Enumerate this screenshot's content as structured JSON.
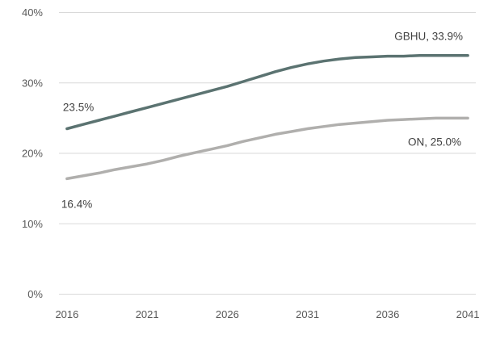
{
  "chart_data": {
    "type": "line",
    "title": "",
    "x": [
      2016,
      2017,
      2018,
      2019,
      2020,
      2021,
      2022,
      2023,
      2024,
      2025,
      2026,
      2027,
      2028,
      2029,
      2030,
      2031,
      2032,
      2033,
      2034,
      2035,
      2036,
      2037,
      2038,
      2039,
      2040,
      2041
    ],
    "series": [
      {
        "name": "GBHU",
        "color": "#5b7371",
        "values": [
          23.5,
          24.1,
          24.7,
          25.3,
          25.9,
          26.5,
          27.1,
          27.7,
          28.3,
          28.9,
          29.5,
          30.2,
          30.9,
          31.6,
          32.2,
          32.7,
          33.1,
          33.4,
          33.6,
          33.7,
          33.8,
          33.8,
          33.9,
          33.9,
          33.9,
          33.9
        ]
      },
      {
        "name": "ON",
        "color": "#b0afad",
        "values": [
          16.4,
          16.8,
          17.2,
          17.7,
          18.1,
          18.5,
          19.0,
          19.6,
          20.1,
          20.6,
          21.1,
          21.7,
          22.2,
          22.7,
          23.1,
          23.5,
          23.8,
          24.1,
          24.3,
          24.5,
          24.7,
          24.8,
          24.9,
          25.0,
          25.0,
          25.0
        ]
      }
    ],
    "y_axis": {
      "min": 0,
      "max": 40,
      "ticks": [
        0,
        10,
        20,
        30,
        40
      ],
      "tick_labels": [
        "0%",
        "10%",
        "20%",
        "30%",
        "40%"
      ]
    },
    "x_axis": {
      "tick_years": [
        2016,
        2021,
        2026,
        2031,
        2036,
        2041
      ],
      "tick_labels": [
        "2016",
        "2021",
        "2026",
        "2031",
        "2036",
        "2041"
      ]
    },
    "grid": true,
    "legend_position": "none",
    "annotations": [
      {
        "id": "gbhu-start",
        "text": "23.5%",
        "series": "GBHU",
        "year": 2016,
        "position": "above-start"
      },
      {
        "id": "gbhu-end",
        "text": "GBHU, 33.9%",
        "series": "GBHU",
        "year": 2041,
        "position": "above-end"
      },
      {
        "id": "on-start",
        "text": "16.4%",
        "series": "ON",
        "year": 2016,
        "position": "below-start"
      },
      {
        "id": "on-end",
        "text": "ON, 25.0%",
        "series": "ON",
        "year": 2041,
        "position": "below-end"
      }
    ]
  },
  "colors": {
    "background": "#ffffff",
    "gridline": "#d9d9d9",
    "axis_text": "#595959",
    "label_text": "#404040"
  }
}
